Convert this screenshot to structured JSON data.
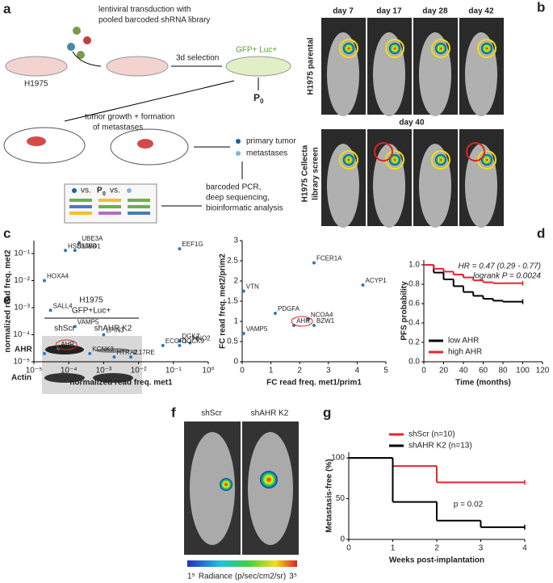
{
  "panels": {
    "a": {
      "letter": "a",
      "transduction1": "lentiviral transduction with",
      "transduction2": "pooled barcoded shRNA library",
      "cell_line": "H1975",
      "selection": "3d selection",
      "gfp": "GFP+ Luc+",
      "p0": "P",
      "p0_sub": "0",
      "tumor1": "tumor growth + formation",
      "tumor2": "of metastases",
      "primary": "primary tumor",
      "metastases": "metastases",
      "pcr1": "barcoded PCR,",
      "pcr2": "deep sequencing,",
      "pcr3": "bioinformatic analysis",
      "vs1": "vs.",
      "p0b": "P",
      "p0b_sub": "0",
      "vs2": "vs."
    },
    "b": {
      "letter": "b",
      "days": [
        "day 7",
        "day 17",
        "day 28",
        "day 42"
      ],
      "parental": "H1975 parental",
      "day40": "day 40",
      "screen1": "H1975 Cellecta",
      "screen2": "library screen"
    },
    "c": {
      "letter": "c"
    },
    "d": {
      "letter": "d"
    },
    "e": {
      "letter": "e",
      "cell1": "H1975",
      "cell2": "GFP+Luc+",
      "lane1": "shScr",
      "lane2": "shAHR K2",
      "row1": "AHR",
      "row2": "Actin"
    },
    "f": {
      "letter": "f",
      "lane1": "shScr",
      "lane2": "shAHR K2",
      "scale_min": "1⁵",
      "scale_label": "Radiance (p/sec/cm2/sr)",
      "scale_max": "3⁵"
    },
    "g": {
      "letter": "g"
    }
  },
  "chart_data": [
    {
      "type": "scatter",
      "color": "#2b7bb9",
      "xlog": true,
      "ylog": true,
      "xlabel": "normalized read freq. met1",
      "ylabel": "normalized read freq. met2",
      "point_labels": [
        "UBE3A",
        "HSD17B4",
        "SNWD1",
        "EEF1G",
        "HOXA4",
        "SALL4",
        "VAMP5",
        "LPIN3",
        "DGKZ",
        "HNO2",
        "ECGF1",
        "DOCK9",
        "KCNK3",
        "HTRA2",
        "IL17RE",
        "AHR",
        "CD27"
      ],
      "x": [
        0.0002,
        8e-05,
        0.00015,
        0.15,
        2e-05,
        3e-05,
        0.00015,
        0.001,
        0.15,
        0.3,
        0.05,
        0.15,
        0.0004,
        0.002,
        0.006,
        5e-05,
        2e-05
      ],
      "values": [
        0.25,
        0.13,
        0.13,
        0.15,
        0.01,
        0.0008,
        0.0002,
        0.0001,
        6e-05,
        5e-05,
        4e-05,
        4e-05,
        2e-05,
        1.5e-05,
        1.5e-05,
        3e-05,
        2e-05
      ],
      "xlim": [
        1e-05,
        1
      ],
      "ylim": [
        1e-05,
        0.3
      ],
      "xticks": [
        {
          "value": 1e-05,
          "label": "10⁻⁵"
        },
        {
          "value": 0.0001,
          "label": "10⁻⁴"
        },
        {
          "value": 0.001,
          "label": "10⁻³"
        },
        {
          "value": 0.01,
          "label": "10⁻²"
        },
        {
          "value": 0.1,
          "label": "10⁻¹"
        },
        {
          "value": 1,
          "label": "10⁰"
        }
      ],
      "yticks": [
        {
          "value": 1e-05,
          "label": "10⁻⁵"
        },
        {
          "value": 0.0001,
          "label": "10⁻⁴"
        },
        {
          "value": 0.001,
          "label": "10⁻³"
        },
        {
          "value": 0.01,
          "label": "10⁻²"
        },
        {
          "value": 0.1,
          "label": "10⁻¹"
        }
      ]
    },
    {
      "type": "scatter",
      "color": "#2b7bb9",
      "xlabel": "FC read freq. met1/prim1",
      "ylabel": "FC read freq. met2/prim2",
      "point_labels": [
        "FCER1A",
        "ACYP1",
        "VTN",
        "PDGFA",
        "NCOA4",
        "BZW1",
        "AHR",
        "VAMP5"
      ],
      "x": [
        2.5,
        4.2,
        0.05,
        1.15,
        2.3,
        2.5,
        1.8,
        0.05
      ],
      "values": [
        2.45,
        1.9,
        1.75,
        1.2,
        1.05,
        0.9,
        0.9,
        0.7
      ],
      "xlim": [
        0,
        5
      ],
      "ylim": [
        0,
        3
      ],
      "xticks": [
        0,
        1,
        2,
        3,
        4,
        5
      ],
      "yticks": [
        0,
        {
          "value": 0.5,
          "label": "0.5"
        },
        1,
        {
          "value": 1.5,
          "label": "1.5"
        },
        2,
        {
          "value": 2.5,
          "label": "2.5"
        },
        3
      ]
    },
    {
      "type": "step",
      "xlabel": "Time (months)",
      "ylabel": "PFS probability",
      "legend": "lower left",
      "annotations": [
        "HR = 0.47 (0.29 - 0.77)",
        "logrank P = 0.0024"
      ],
      "xlim": [
        0,
        120
      ],
      "ylim": [
        0,
        1.05
      ],
      "xticks": [
        0,
        20,
        40,
        60,
        80,
        100,
        120
      ],
      "yticks": [
        {
          "value": 0,
          "label": "0.0"
        },
        {
          "value": 0.2,
          "label": "0.2"
        },
        {
          "value": 0.4,
          "label": "0.4"
        },
        {
          "value": 0.6,
          "label": "0.6"
        },
        {
          "value": 0.8,
          "label": "0.8"
        },
        {
          "value": 1,
          "label": "1.0"
        }
      ],
      "series": [
        {
          "name": "low AHR",
          "color": "#000000",
          "x": [
            0,
            10,
            20,
            30,
            40,
            50,
            60,
            70,
            80,
            100
          ],
          "values": [
            1,
            0.92,
            0.85,
            0.78,
            0.72,
            0.68,
            0.65,
            0.63,
            0.62,
            0.62
          ]
        },
        {
          "name": "high AHR",
          "color": "#e8262b",
          "x": [
            0,
            10,
            20,
            30,
            40,
            50,
            60,
            70,
            80,
            100
          ],
          "values": [
            1,
            0.96,
            0.93,
            0.9,
            0.87,
            0.84,
            0.82,
            0.81,
            0.81,
            0.81
          ]
        }
      ]
    },
    {
      "type": "step",
      "xlabel": "Weeks post-implantation",
      "ylabel": "Metastasis-free (%)",
      "legend": "upper left",
      "annotations": [
        "p = 0.02"
      ],
      "xlim": [
        0,
        4
      ],
      "ylim": [
        0,
        107
      ],
      "xticks": [
        0,
        1,
        2,
        3,
        4
      ],
      "yticks": [
        0,
        50,
        100
      ],
      "series": [
        {
          "name": "shScr (n=10)",
          "color": "#e8262b",
          "x": [
            0,
            1,
            2,
            4
          ],
          "values": [
            100,
            90,
            70,
            70
          ]
        },
        {
          "name": "shAHR K2 (n=13)",
          "color": "#000000",
          "x": [
            0,
            1,
            2,
            3,
            4
          ],
          "values": [
            100,
            46,
            23,
            15,
            15
          ]
        }
      ]
    }
  ]
}
